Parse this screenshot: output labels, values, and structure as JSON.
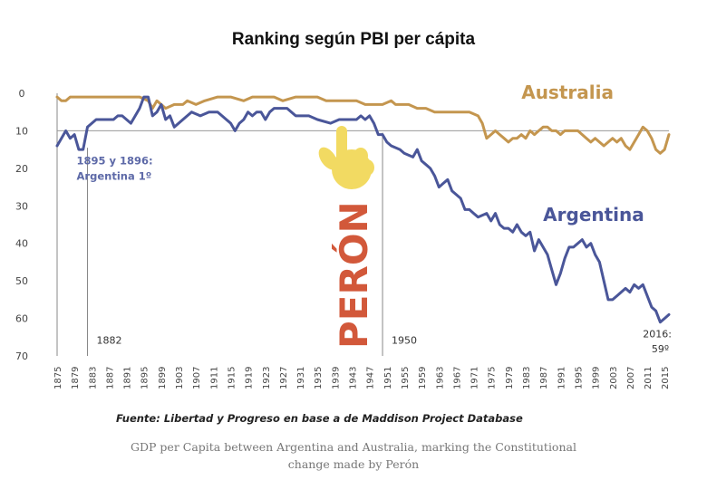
{
  "chart_data": {
    "type": "line",
    "title": "Ranking según PBI per cápita",
    "xlabel": "",
    "ylabel": "",
    "ylim": [
      0,
      70
    ],
    "y_inverted": true,
    "xlim": [
      1875,
      2016
    ],
    "yticks": [
      0,
      10,
      20,
      30,
      40,
      50,
      60,
      70
    ],
    "xticks": [
      1875,
      1879,
      1883,
      1887,
      1891,
      1895,
      1899,
      1903,
      1907,
      1911,
      1915,
      1919,
      1923,
      1927,
      1931,
      1935,
      1939,
      1943,
      1947,
      1951,
      1955,
      1959,
      1963,
      1967,
      1971,
      1975,
      1979,
      1983,
      1987,
      1991,
      1995,
      1999,
      2003,
      2007,
      2011,
      2015
    ],
    "grid": false,
    "reference_line": {
      "y": 10
    },
    "vertical_lines": [
      {
        "x": 1882,
        "label": "1882"
      },
      {
        "x": 1950,
        "label": "1950"
      }
    ],
    "series": [
      {
        "name": "Australia",
        "color": "#c4964f",
        "points": [
          [
            1875,
            1
          ],
          [
            1876,
            2
          ],
          [
            1877,
            2
          ],
          [
            1878,
            1
          ],
          [
            1880,
            1
          ],
          [
            1885,
            1
          ],
          [
            1890,
            1
          ],
          [
            1894,
            1
          ],
          [
            1896,
            2
          ],
          [
            1897,
            4
          ],
          [
            1898,
            2
          ],
          [
            1899,
            3
          ],
          [
            1900,
            4
          ],
          [
            1902,
            3
          ],
          [
            1904,
            3
          ],
          [
            1905,
            2
          ],
          [
            1907,
            3
          ],
          [
            1909,
            2
          ],
          [
            1912,
            1
          ],
          [
            1915,
            1
          ],
          [
            1918,
            2
          ],
          [
            1920,
            1
          ],
          [
            1925,
            1
          ],
          [
            1927,
            2
          ],
          [
            1930,
            1
          ],
          [
            1935,
            1
          ],
          [
            1937,
            2
          ],
          [
            1940,
            2
          ],
          [
            1944,
            2
          ],
          [
            1946,
            3
          ],
          [
            1948,
            3
          ],
          [
            1950,
            3
          ],
          [
            1952,
            2
          ],
          [
            1953,
            3
          ],
          [
            1956,
            3
          ],
          [
            1958,
            4
          ],
          [
            1960,
            4
          ],
          [
            1962,
            5
          ],
          [
            1966,
            5
          ],
          [
            1970,
            5
          ],
          [
            1972,
            6
          ],
          [
            1973,
            8
          ],
          [
            1974,
            12
          ],
          [
            1975,
            11
          ],
          [
            1976,
            10
          ],
          [
            1977,
            11
          ],
          [
            1978,
            12
          ],
          [
            1979,
            13
          ],
          [
            1980,
            12
          ],
          [
            1981,
            12
          ],
          [
            1982,
            11
          ],
          [
            1983,
            12
          ],
          [
            1984,
            10
          ],
          [
            1985,
            11
          ],
          [
            1986,
            10
          ],
          [
            1987,
            9
          ],
          [
            1988,
            9
          ],
          [
            1989,
            10
          ],
          [
            1990,
            10
          ],
          [
            1991,
            11
          ],
          [
            1992,
            10
          ],
          [
            1993,
            10
          ],
          [
            1995,
            10
          ],
          [
            1996,
            11
          ],
          [
            1997,
            12
          ],
          [
            1998,
            13
          ],
          [
            1999,
            12
          ],
          [
            2000,
            13
          ],
          [
            2001,
            14
          ],
          [
            2002,
            13
          ],
          [
            2003,
            12
          ],
          [
            2004,
            13
          ],
          [
            2005,
            12
          ],
          [
            2006,
            14
          ],
          [
            2007,
            15
          ],
          [
            2008,
            13
          ],
          [
            2009,
            11
          ],
          [
            2010,
            9
          ],
          [
            2011,
            10
          ],
          [
            2012,
            12
          ],
          [
            2013,
            15
          ],
          [
            2014,
            16
          ],
          [
            2015,
            15
          ],
          [
            2016,
            11
          ]
        ]
      },
      {
        "name": "Argentina",
        "color": "#4a5699",
        "points": [
          [
            1875,
            14
          ],
          [
            1876,
            12
          ],
          [
            1877,
            10
          ],
          [
            1878,
            12
          ],
          [
            1879,
            11
          ],
          [
            1880,
            15
          ],
          [
            1881,
            15
          ],
          [
            1882,
            9
          ],
          [
            1883,
            8
          ],
          [
            1884,
            7
          ],
          [
            1886,
            7
          ],
          [
            1888,
            7
          ],
          [
            1889,
            6
          ],
          [
            1890,
            6
          ],
          [
            1892,
            8
          ],
          [
            1893,
            6
          ],
          [
            1894,
            4
          ],
          [
            1895,
            1
          ],
          [
            1896,
            1
          ],
          [
            1897,
            6
          ],
          [
            1898,
            5
          ],
          [
            1899,
            3
          ],
          [
            1900,
            7
          ],
          [
            1901,
            6
          ],
          [
            1902,
            9
          ],
          [
            1904,
            7
          ],
          [
            1906,
            5
          ],
          [
            1908,
            6
          ],
          [
            1910,
            5
          ],
          [
            1912,
            5
          ],
          [
            1914,
            7
          ],
          [
            1915,
            8
          ],
          [
            1916,
            10
          ],
          [
            1917,
            8
          ],
          [
            1918,
            7
          ],
          [
            1919,
            5
          ],
          [
            1920,
            6
          ],
          [
            1921,
            5
          ],
          [
            1922,
            5
          ],
          [
            1923,
            7
          ],
          [
            1924,
            5
          ],
          [
            1925,
            4
          ],
          [
            1928,
            4
          ],
          [
            1930,
            6
          ],
          [
            1933,
            6
          ],
          [
            1935,
            7
          ],
          [
            1938,
            8
          ],
          [
            1940,
            7
          ],
          [
            1942,
            7
          ],
          [
            1944,
            7
          ],
          [
            1945,
            6
          ],
          [
            1946,
            7
          ],
          [
            1947,
            6
          ],
          [
            1948,
            8
          ],
          [
            1949,
            11
          ],
          [
            1950,
            11
          ],
          [
            1951,
            13
          ],
          [
            1952,
            14
          ],
          [
            1954,
            15
          ],
          [
            1955,
            16
          ],
          [
            1957,
            17
          ],
          [
            1958,
            15
          ],
          [
            1959,
            18
          ],
          [
            1960,
            19
          ],
          [
            1961,
            20
          ],
          [
            1962,
            22
          ],
          [
            1963,
            25
          ],
          [
            1964,
            24
          ],
          [
            1965,
            23
          ],
          [
            1966,
            26
          ],
          [
            1967,
            27
          ],
          [
            1968,
            28
          ],
          [
            1969,
            31
          ],
          [
            1970,
            31
          ],
          [
            1971,
            32
          ],
          [
            1972,
            33
          ],
          [
            1974,
            32
          ],
          [
            1975,
            34
          ],
          [
            1976,
            32
          ],
          [
            1977,
            35
          ],
          [
            1978,
            36
          ],
          [
            1979,
            36
          ],
          [
            1980,
            37
          ],
          [
            1981,
            35
          ],
          [
            1982,
            37
          ],
          [
            1983,
            38
          ],
          [
            1984,
            37
          ],
          [
            1985,
            42
          ],
          [
            1986,
            39
          ],
          [
            1987,
            41
          ],
          [
            1988,
            43
          ],
          [
            1989,
            47
          ],
          [
            1990,
            51
          ],
          [
            1991,
            48
          ],
          [
            1992,
            44
          ],
          [
            1993,
            41
          ],
          [
            1994,
            41
          ],
          [
            1995,
            40
          ],
          [
            1996,
            39
          ],
          [
            1997,
            41
          ],
          [
            1998,
            40
          ],
          [
            1999,
            43
          ],
          [
            2000,
            45
          ],
          [
            2001,
            50
          ],
          [
            2002,
            55
          ],
          [
            2003,
            55
          ],
          [
            2004,
            54
          ],
          [
            2005,
            53
          ],
          [
            2006,
            52
          ],
          [
            2007,
            53
          ],
          [
            2008,
            51
          ],
          [
            2009,
            52
          ],
          [
            2010,
            51
          ],
          [
            2011,
            54
          ],
          [
            2012,
            57
          ],
          [
            2013,
            58
          ],
          [
            2014,
            61
          ],
          [
            2015,
            60
          ],
          [
            2016,
            59
          ]
        ]
      }
    ],
    "annotations": [
      {
        "text": "1895 y 1896:",
        "x": 1879.5,
        "y": 19
      },
      {
        "text": "Argentina 1º",
        "x": 1879.5,
        "y": 23
      },
      {
        "text": "2016:",
        "x": 2010,
        "y": 65
      },
      {
        "text": "59º",
        "x": 2012,
        "y": 69
      },
      {
        "text": "Australia",
        "x": 1982,
        "y": 1.5,
        "series": "Australia"
      },
      {
        "text": "Argentina",
        "x": 1987,
        "y": 34,
        "series": "Argentina"
      },
      {
        "text": "PERÓN",
        "x": 1943,
        "y": 40,
        "orientation": "vertical"
      }
    ]
  },
  "labels": {
    "year_1882": "1882",
    "year_1950": "1950",
    "peron": "PERÓN",
    "pointer": "pointing-hand"
  },
  "source_note": "Fuente: Libertad y Progreso en  base a de Maddison Project Database",
  "caption": "GDP per Capita between Argentina and Australia, marking the Constitutional change made by Perón"
}
